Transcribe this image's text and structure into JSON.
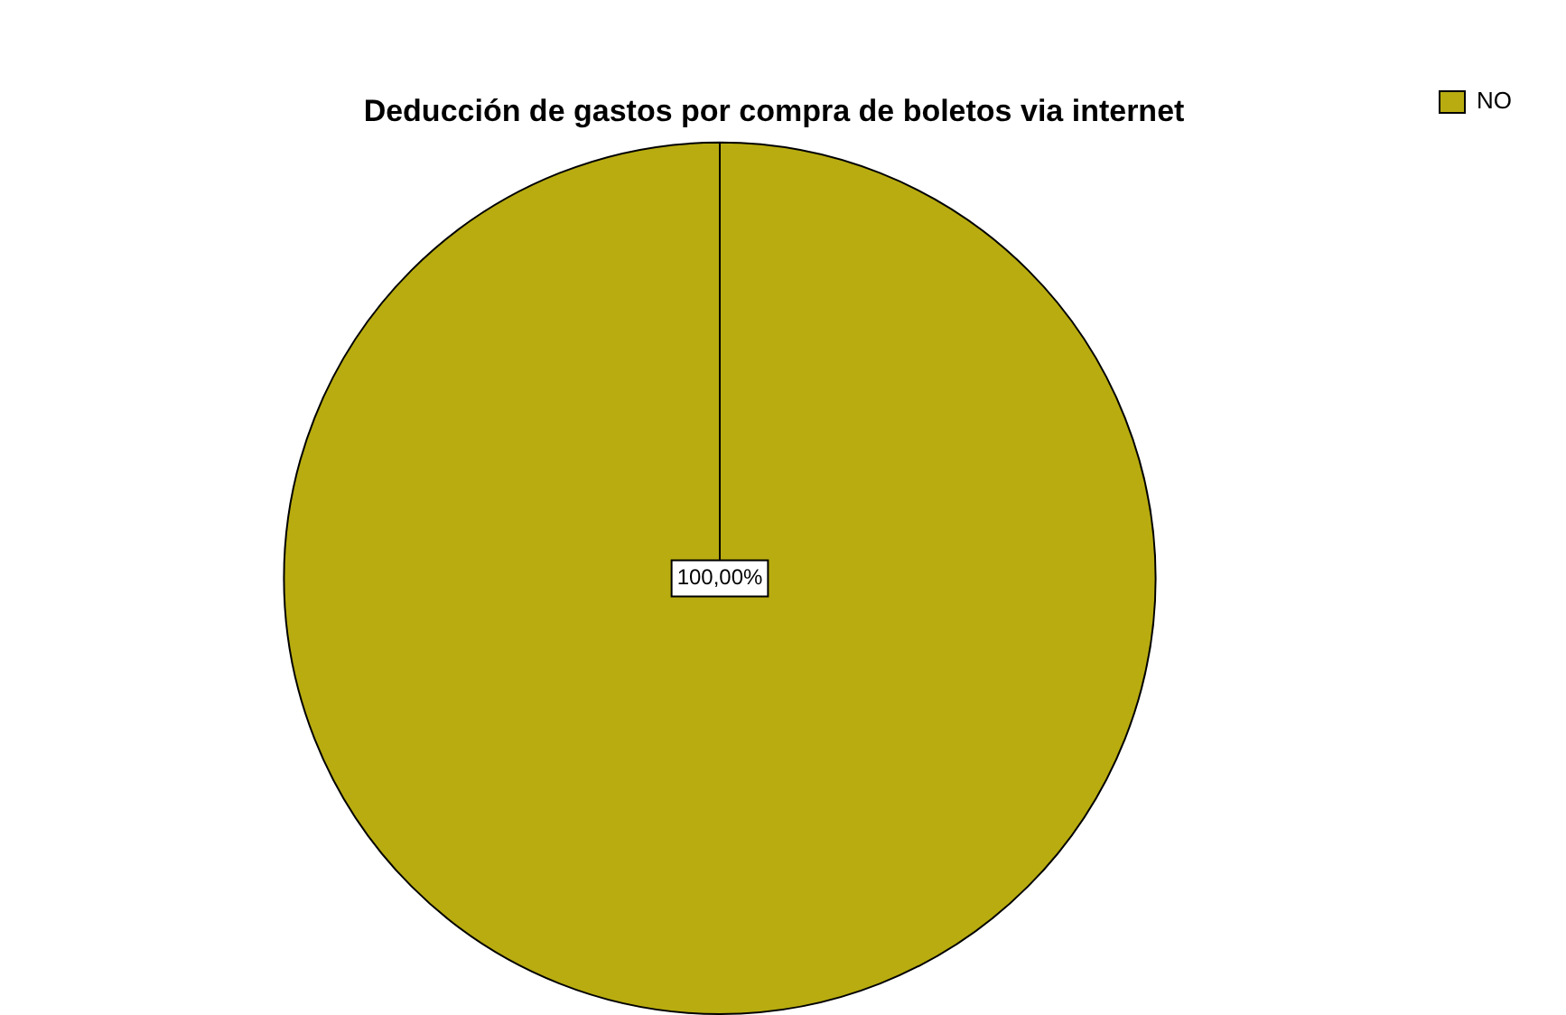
{
  "chart_data": {
    "type": "pie",
    "title": "Deducción de gastos por compra de boletos via internet",
    "categories": [
      "NO"
    ],
    "values": [
      100
    ],
    "colors": [
      "#b8ac10"
    ],
    "value_labels": [
      "100,00%"
    ],
    "legend": "top right"
  }
}
